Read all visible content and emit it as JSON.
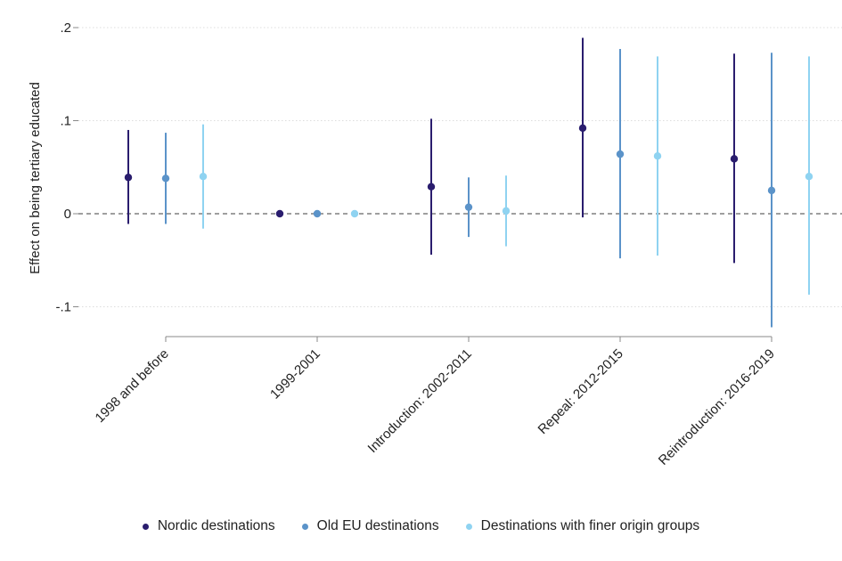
{
  "chart_data": {
    "type": "scatter",
    "subtype": "coefficient-plot",
    "ylabel": "Effect on being tertiary educated",
    "ylim": [
      -0.125,
      0.2
    ],
    "yticks": [
      -0.1,
      0,
      0.1,
      0.2
    ],
    "ytick_labels": [
      "-.1",
      "0",
      ".1",
      ".2"
    ],
    "reference_line": 0,
    "categories": [
      "1998 and before",
      "1999-2001",
      "Introduction: 2002-2011",
      "Repeal: 2012-2015",
      "Reintroduction: 2016-2019"
    ],
    "series": [
      {
        "name": "Nordic destinations",
        "color": "#2a1d6e",
        "points": [
          {
            "est": 0.039,
            "lo": -0.011,
            "hi": 0.09
          },
          {
            "est": 0.0,
            "lo": 0.0,
            "hi": 0.0
          },
          {
            "est": 0.029,
            "lo": -0.044,
            "hi": 0.102
          },
          {
            "est": 0.092,
            "lo": -0.004,
            "hi": 0.189
          },
          {
            "est": 0.059,
            "lo": -0.053,
            "hi": 0.172
          }
        ]
      },
      {
        "name": "Old EU destinations",
        "color": "#5b93c9",
        "points": [
          {
            "est": 0.038,
            "lo": -0.011,
            "hi": 0.087
          },
          {
            "est": 0.0,
            "lo": 0.0,
            "hi": 0.0
          },
          {
            "est": 0.007,
            "lo": -0.025,
            "hi": 0.039
          },
          {
            "est": 0.064,
            "lo": -0.048,
            "hi": 0.177
          },
          {
            "est": 0.025,
            "lo": -0.122,
            "hi": 0.173
          }
        ]
      },
      {
        "name": "Destinations with finer origin groups",
        "color": "#8fd3f1",
        "points": [
          {
            "est": 0.04,
            "lo": -0.016,
            "hi": 0.096
          },
          {
            "est": 0.0,
            "lo": 0.0,
            "hi": 0.0
          },
          {
            "est": 0.003,
            "lo": -0.035,
            "hi": 0.041
          },
          {
            "est": 0.062,
            "lo": -0.045,
            "hi": 0.169
          },
          {
            "est": 0.04,
            "lo": -0.087,
            "hi": 0.169
          }
        ]
      }
    ]
  }
}
